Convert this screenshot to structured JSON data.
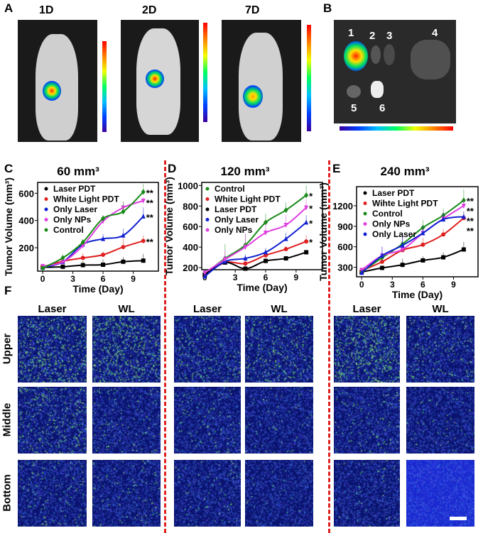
{
  "panel_labels": {
    "A": "A",
    "B": "B",
    "C": "C",
    "D": "D",
    "E": "E",
    "F": "F"
  },
  "panel_a": {
    "days": [
      "1D",
      "2D",
      "7D"
    ]
  },
  "panel_b": {
    "organs": [
      "1",
      "2",
      "3",
      "4",
      "5",
      "6"
    ]
  },
  "panel_f": {
    "columns": [
      "Laser",
      "WL",
      "Laser",
      "WL",
      "Laser",
      "WL"
    ],
    "rows": [
      "Upper",
      "Middle",
      "Bottom"
    ]
  },
  "colors": {
    "Laser PDT": "#000000",
    "White Light PDT": "#e02020",
    "Wihte Light PDT": "#e02020",
    "Only Laser": "#1020d0",
    "Only NPs": "#e040e0",
    "Control": "#1a8a1a",
    "divider": "#e02020"
  },
  "chart_data": [
    {
      "type": "line",
      "title": "60 mm³",
      "xlabel": "Time (Day)",
      "ylabel": "Tumor Volume (mm³)",
      "xticks": [
        0,
        3,
        6,
        9
      ],
      "yticks": [
        200,
        400,
        600
      ],
      "xlim": [
        -0.5,
        11.5
      ],
      "ylim": [
        28,
        680
      ],
      "legend": "top-left",
      "x": [
        0,
        2,
        4,
        6,
        8,
        10
      ],
      "series": [
        {
          "name": "Laser PDT",
          "marker": "square",
          "values": [
            55,
            60,
            72,
            75,
            97,
            105
          ],
          "err": [
            10,
            15,
            30,
            40,
            35,
            50
          ],
          "sig": ""
        },
        {
          "name": "White Light PDT",
          "marker": "circle",
          "values": [
            60,
            100,
            125,
            148,
            205,
            250
          ],
          "err": [
            10,
            20,
            35,
            25,
            65,
            40
          ],
          "sig": "**"
        },
        {
          "name": "Only Laser",
          "marker": "triangle",
          "values": [
            55,
            95,
            225,
            265,
            290,
            430
          ],
          "err": [
            10,
            25,
            20,
            35,
            50,
            65
          ],
          "sig": "**"
        },
        {
          "name": "Only NPs",
          "marker": "down-triangle",
          "values": [
            65,
            95,
            215,
            395,
            495,
            545
          ],
          "err": [
            10,
            25,
            25,
            30,
            45,
            25
          ],
          "sig": "**"
        },
        {
          "name": "Control",
          "marker": "diamond",
          "values": [
            50,
            125,
            240,
            415,
            465,
            610
          ],
          "err": [
            10,
            25,
            25,
            25,
            70,
            60
          ],
          "sig": "**"
        }
      ]
    },
    {
      "type": "line",
      "title": "120 mm³",
      "xlabel": "Time (Day)",
      "ylabel": "Tumor Volume (mm³)",
      "xticks": [
        0,
        3,
        6,
        9
      ],
      "yticks": [
        200,
        400,
        600,
        800,
        1000
      ],
      "xlim": [
        -0.3,
        11.6
      ],
      "ylim": [
        180,
        1030
      ],
      "legend": "top-left",
      "x": [
        0,
        2,
        4,
        6,
        8,
        10
      ],
      "series": [
        {
          "name": "Control",
          "marker": "diamond",
          "values": [
            140,
            290,
            420,
            640,
            760,
            905
          ],
          "err": [
            20,
            140,
            110,
            85,
            75,
            95
          ],
          "sig": "*"
        },
        {
          "name": "White Light PDT",
          "marker": "circle",
          "values": [
            130,
            250,
            240,
            320,
            380,
            455
          ],
          "err": [
            20,
            60,
            50,
            45,
            30,
            60
          ],
          "sig": "*"
        },
        {
          "name": "Laser PDT",
          "marker": "square",
          "values": [
            130,
            250,
            190,
            265,
            290,
            350
          ],
          "err": [
            20,
            40,
            30,
            30,
            25,
            20
          ],
          "sig": ""
        },
        {
          "name": "Only Laser",
          "marker": "triangle",
          "values": [
            115,
            260,
            290,
            350,
            480,
            640
          ],
          "err": [
            20,
            60,
            40,
            40,
            60,
            70
          ],
          "sig": "*"
        },
        {
          "name": "Only NPs",
          "marker": "down-triangle",
          "values": [
            150,
            280,
            400,
            540,
            615,
            785
          ],
          "err": [
            20,
            90,
            130,
            90,
            95,
            80
          ],
          "sig": "*"
        }
      ]
    },
    {
      "type": "line",
      "title": "240 mm³",
      "xlabel": "Time (Day)",
      "ylabel": "Tumor Volume (mm³)",
      "xticks": [
        0,
        3,
        6,
        9
      ],
      "yticks": [
        300,
        600,
        900,
        1200
      ],
      "xlim": [
        -0.5,
        11.4
      ],
      "ylim": [
        160,
        1480
      ],
      "legend": "top-left",
      "x": [
        0,
        2,
        4,
        6,
        8,
        10
      ],
      "series": [
        {
          "name": "Laser PDT",
          "marker": "square",
          "values": [
            230,
            290,
            335,
            400,
            445,
            560
          ],
          "err": [
            20,
            30,
            90,
            60,
            70,
            110
          ],
          "sig": ""
        },
        {
          "name": "Wihte Light PDT",
          "marker": "circle",
          "values": [
            250,
            380,
            550,
            630,
            780,
            1020
          ],
          "err": [
            20,
            60,
            130,
            100,
            80,
            80
          ],
          "sig": "**"
        },
        {
          "name": "Control",
          "marker": "diamond",
          "values": [
            230,
            440,
            640,
            880,
            1060,
            1280
          ],
          "err": [
            20,
            100,
            120,
            110,
            100,
            160
          ],
          "sig": "**"
        },
        {
          "name": "Only NPs",
          "marker": "down-triangle",
          "values": [
            260,
            470,
            560,
            800,
            1010,
            1200
          ],
          "err": [
            20,
            130,
            200,
            90,
            90,
            80
          ],
          "sig": "**"
        },
        {
          "name": "Only Laser",
          "marker": "triangle",
          "values": [
            220,
            470,
            620,
            800,
            1000,
            1040
          ],
          "err": [
            20,
            130,
            140,
            100,
            100,
            80
          ],
          "sig": "**"
        }
      ]
    }
  ]
}
